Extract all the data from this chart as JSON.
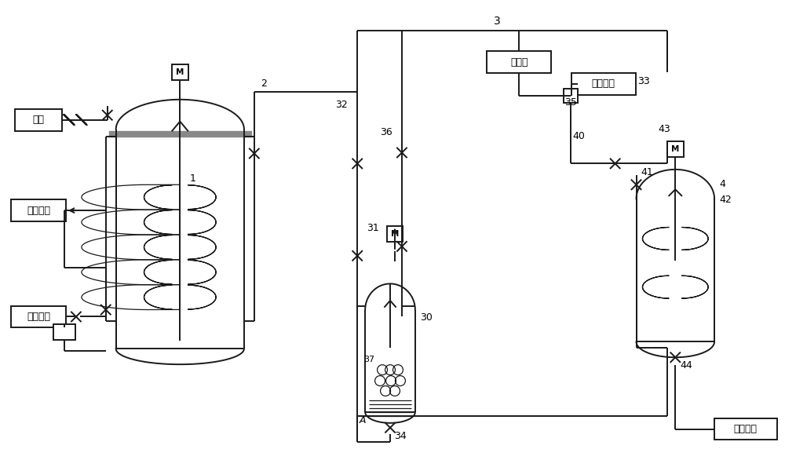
{
  "bg": "#ffffff",
  "lc": "#1a1a1a",
  "lw": 1.4,
  "lw_thin": 0.9,
  "labels": {
    "nitrogen": "氮气",
    "cold_return": "冷冻回水",
    "cold_supply": "冷冻供水",
    "desalted": "脱盐水",
    "co2": "二氧化碳",
    "to_latex": "去胶液罐",
    "M": "M",
    "A": "A",
    "1": "1",
    "2": "2",
    "3": "3",
    "4": "4",
    "30": "30",
    "31": "31",
    "32": "32",
    "33": "33",
    "34": "34",
    "35": "35",
    "36": "36",
    "37": "37",
    "40": "40",
    "41": "41",
    "42": "42",
    "43": "43",
    "44": "44"
  },
  "jacket_color": "#888888"
}
